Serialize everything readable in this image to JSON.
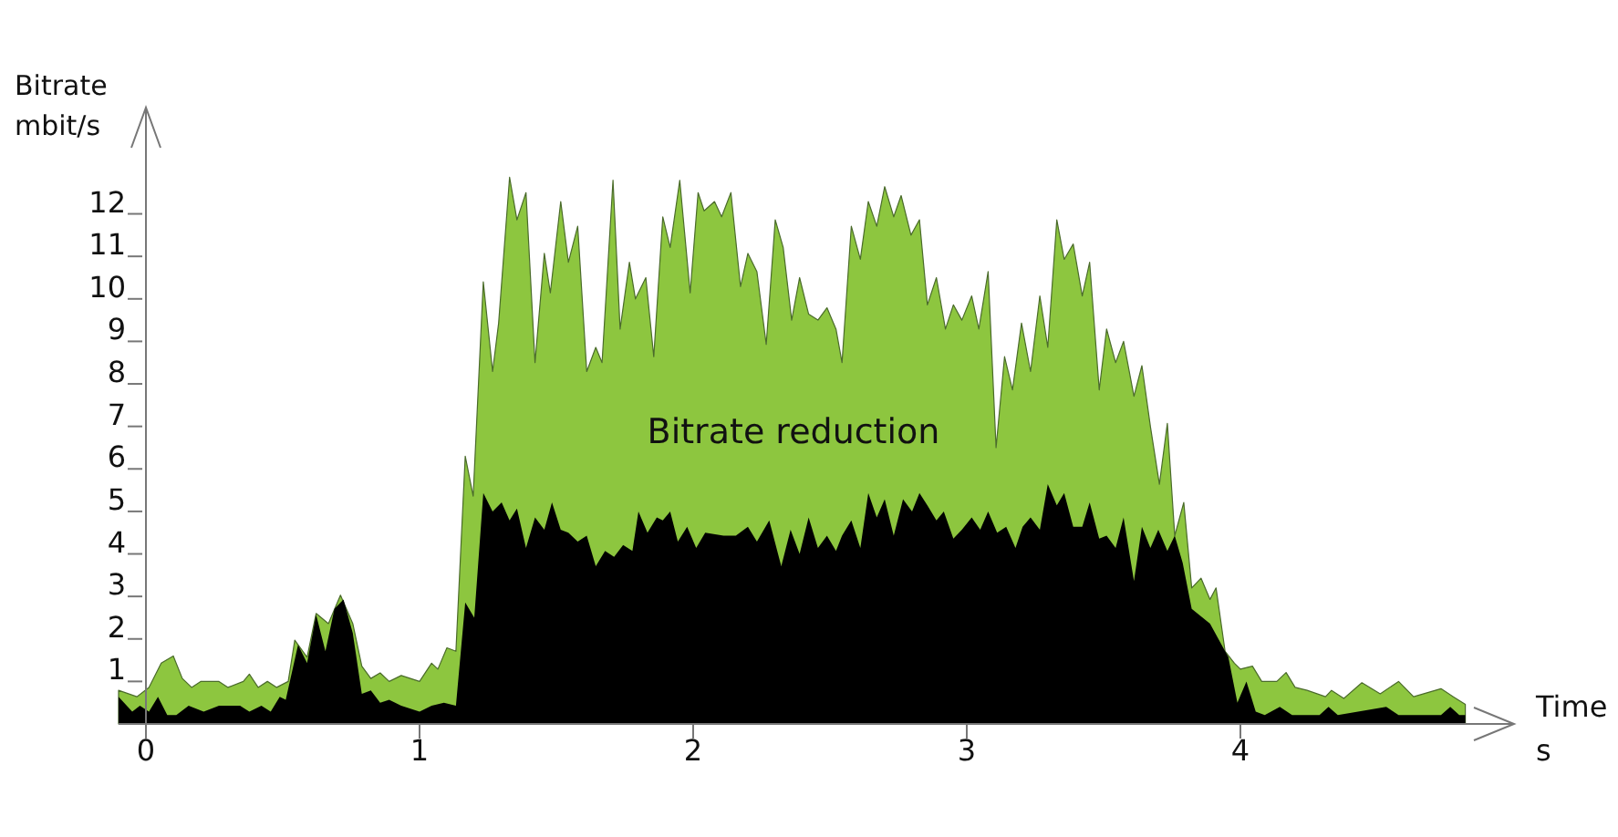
{
  "chart_data": {
    "type": "area",
    "xlabel": "Time\ns",
    "ylabel": "Bitrate\nmbit/s",
    "xlim": [
      -0.1,
      5.0
    ],
    "ylim": [
      0,
      14.5
    ],
    "xticks": [
      0,
      1,
      2,
      3,
      4
    ],
    "yticks": [
      1,
      2,
      3,
      4,
      5,
      6,
      7,
      8,
      9,
      10,
      11,
      12
    ],
    "grid": false,
    "annotations": [
      "Bitrate reduction"
    ],
    "series": [
      {
        "color": "#8dc63f",
        "x": [
          -0.1,
          -0.033,
          0.011,
          0.056,
          0.1,
          0.133,
          0.167,
          0.2,
          0.267,
          0.3,
          0.356,
          0.378,
          0.41,
          0.444,
          0.478,
          0.52,
          0.544,
          0.589,
          0.622,
          0.667,
          0.711,
          0.756,
          0.789,
          0.822,
          0.856,
          0.889,
          0.933,
          1.0,
          1.044,
          1.067,
          1.1,
          1.133,
          1.167,
          1.196,
          1.233,
          1.267,
          1.289,
          1.329,
          1.356,
          1.389,
          1.422,
          1.456,
          1.478,
          1.516,
          1.544,
          1.578,
          1.611,
          1.644,
          1.667,
          1.707,
          1.733,
          1.767,
          1.789,
          1.827,
          1.856,
          1.889,
          1.916,
          1.951,
          1.989,
          2.018,
          2.04,
          2.078,
          2.104,
          2.138,
          2.173,
          2.2,
          2.233,
          2.267,
          2.3,
          2.329,
          2.36,
          2.389,
          2.422,
          2.456,
          2.489,
          2.522,
          2.544,
          2.578,
          2.611,
          2.64,
          2.671,
          2.7,
          2.733,
          2.76,
          2.796,
          2.827,
          2.856,
          2.889,
          2.922,
          2.951,
          2.982,
          3.018,
          3.044,
          3.078,
          3.107,
          3.138,
          3.167,
          3.2,
          3.233,
          3.267,
          3.296,
          3.329,
          3.356,
          3.389,
          3.422,
          3.449,
          3.484,
          3.511,
          3.544,
          3.573,
          3.611,
          3.64,
          3.671,
          3.704,
          3.733,
          3.76,
          3.793,
          3.822,
          3.856,
          3.889,
          3.911,
          3.944,
          3.978,
          4.0,
          4.044,
          4.078,
          4.133,
          4.167,
          4.2,
          4.244,
          4.311,
          4.333,
          4.378,
          4.444,
          4.511,
          4.578,
          4.633,
          4.733,
          4.778,
          4.822
        ],
        "values": [
          0.79,
          0.64,
          0.86,
          1.43,
          1.6,
          1.07,
          0.86,
          1.0,
          1.0,
          0.86,
          1.0,
          1.17,
          0.86,
          1.0,
          0.86,
          1.0,
          1.97,
          1.57,
          2.6,
          2.36,
          3.03,
          2.36,
          1.36,
          1.07,
          1.2,
          1.0,
          1.14,
          1.0,
          1.43,
          1.29,
          1.79,
          1.71,
          6.3,
          5.36,
          10.4,
          8.29,
          9.43,
          12.86,
          11.86,
          12.5,
          8.5,
          11.07,
          10.14,
          12.29,
          10.86,
          11.71,
          8.29,
          8.86,
          8.5,
          12.79,
          9.29,
          10.86,
          10.0,
          10.5,
          8.64,
          11.93,
          11.21,
          12.79,
          10.14,
          12.5,
          12.07,
          12.29,
          11.93,
          12.5,
          10.29,
          11.07,
          10.64,
          8.93,
          11.86,
          11.21,
          9.5,
          10.5,
          9.64,
          9.5,
          9.79,
          9.29,
          8.5,
          11.71,
          10.93,
          12.29,
          11.71,
          12.64,
          11.93,
          12.43,
          11.5,
          11.86,
          9.86,
          10.5,
          9.29,
          9.86,
          9.5,
          10.07,
          9.29,
          10.64,
          6.5,
          8.64,
          7.86,
          9.43,
          8.29,
          10.07,
          8.86,
          11.86,
          10.93,
          11.29,
          10.07,
          10.86,
          7.86,
          9.29,
          8.5,
          9.0,
          7.71,
          8.43,
          7.0,
          5.64,
          7.07,
          4.43,
          5.21,
          3.2,
          3.43,
          2.93,
          3.2,
          1.71,
          1.43,
          1.29,
          1.36,
          1.0,
          1.0,
          1.21,
          0.86,
          0.79,
          0.64,
          0.79,
          0.6,
          0.97,
          0.71,
          1.0,
          0.64,
          0.83,
          0.64,
          0.46
        ]
      },
      {
        "color": "#000000",
        "x": [
          -0.1,
          -0.05,
          -0.022,
          0.011,
          0.044,
          0.078,
          0.111,
          0.156,
          0.211,
          0.267,
          0.344,
          0.378,
          0.422,
          0.456,
          0.489,
          0.511,
          0.556,
          0.589,
          0.622,
          0.656,
          0.689,
          0.722,
          0.756,
          0.789,
          0.822,
          0.856,
          0.889,
          0.933,
          1.0,
          1.044,
          1.089,
          1.133,
          1.167,
          1.2,
          1.233,
          1.267,
          1.3,
          1.329,
          1.356,
          1.389,
          1.422,
          1.456,
          1.484,
          1.516,
          1.544,
          1.578,
          1.611,
          1.644,
          1.678,
          1.711,
          1.744,
          1.778,
          1.8,
          1.833,
          1.867,
          1.889,
          1.916,
          1.944,
          1.978,
          2.011,
          2.044,
          2.111,
          2.156,
          2.2,
          2.233,
          2.278,
          2.322,
          2.356,
          2.389,
          2.422,
          2.456,
          2.489,
          2.522,
          2.544,
          2.578,
          2.611,
          2.64,
          2.671,
          2.7,
          2.733,
          2.767,
          2.8,
          2.827,
          2.856,
          2.889,
          2.916,
          2.951,
          2.982,
          3.018,
          3.049,
          3.078,
          3.111,
          3.144,
          3.178,
          3.204,
          3.233,
          3.267,
          3.296,
          3.329,
          3.356,
          3.389,
          3.422,
          3.449,
          3.484,
          3.511,
          3.544,
          3.573,
          3.611,
          3.64,
          3.671,
          3.7,
          3.733,
          3.76,
          3.789,
          3.822,
          3.889,
          3.956,
          3.989,
          4.022,
          4.056,
          4.089,
          4.144,
          4.189,
          4.289,
          4.322,
          4.356,
          4.533,
          4.578,
          4.733,
          4.767,
          4.8,
          4.822
        ],
        "values": [
          0.64,
          0.29,
          0.43,
          0.29,
          0.64,
          0.21,
          0.21,
          0.43,
          0.29,
          0.43,
          0.43,
          0.29,
          0.43,
          0.29,
          0.64,
          0.57,
          1.86,
          1.43,
          2.57,
          1.71,
          2.71,
          2.93,
          2.14,
          0.71,
          0.79,
          0.5,
          0.57,
          0.43,
          0.29,
          0.43,
          0.5,
          0.43,
          2.86,
          2.5,
          5.43,
          5.0,
          5.21,
          4.79,
          5.07,
          4.14,
          4.86,
          4.57,
          5.21,
          4.57,
          4.5,
          4.29,
          4.43,
          3.71,
          4.07,
          3.93,
          4.21,
          4.07,
          5.0,
          4.5,
          4.86,
          4.79,
          5.0,
          4.29,
          4.64,
          4.14,
          4.5,
          4.43,
          4.43,
          4.64,
          4.29,
          4.79,
          3.71,
          4.57,
          4.0,
          4.86,
          4.14,
          4.43,
          4.07,
          4.43,
          4.79,
          4.14,
          5.43,
          4.86,
          5.29,
          4.43,
          5.29,
          5.0,
          5.43,
          5.14,
          4.79,
          5.0,
          4.36,
          4.57,
          4.86,
          4.57,
          5.0,
          4.5,
          4.64,
          4.14,
          4.64,
          4.86,
          4.57,
          5.64,
          5.14,
          5.43,
          4.64,
          4.64,
          5.21,
          4.36,
          4.43,
          4.14,
          4.86,
          3.36,
          4.64,
          4.14,
          4.57,
          4.07,
          4.43,
          3.79,
          2.71,
          2.36,
          1.57,
          0.5,
          1.0,
          0.29,
          0.21,
          0.4,
          0.21,
          0.21,
          0.4,
          0.21,
          0.4,
          0.21,
          0.21,
          0.4,
          0.21,
          0.21
        ]
      }
    ]
  }
}
